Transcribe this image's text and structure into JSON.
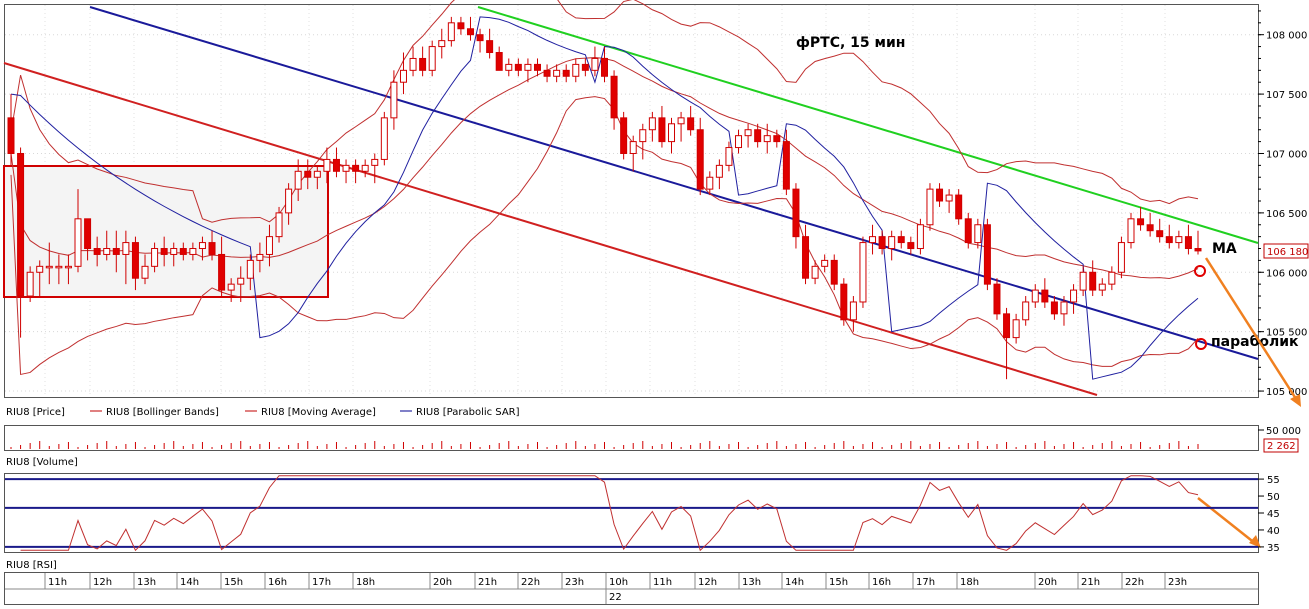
{
  "chart_data": {
    "type": "candlestick",
    "title": "фРТС, 15 мин",
    "instrument": "RIU8",
    "price_axis": {
      "ticks": [
        "108 000",
        "107 500",
        "107 000",
        "106 500",
        "106 000",
        "105 500",
        "105 000"
      ],
      "range": [
        104950,
        108250
      ]
    },
    "current_price_label": "106 180",
    "legend": [
      {
        "name": "RIU8 [Price]",
        "color": "#e00000"
      },
      {
        "name": "RIU8 [Bollinger Bands]",
        "color": "#c00000"
      },
      {
        "name": "RIU8 [Moving Average]",
        "color": "#c00000"
      },
      {
        "name": "RIU8 [Parabolic SAR]",
        "color": "#000090"
      }
    ],
    "volume": {
      "label": "RIU8 [Volume]",
      "tick": "50 000",
      "current": "2 262"
    },
    "rsi": {
      "label": "RIU8 [RSI]",
      "ticks": [
        "55",
        "50",
        "45",
        "40",
        "35"
      ],
      "range": [
        33.5,
        56.5
      ],
      "levels": [
        55,
        46.5,
        35
      ]
    },
    "time_axis": {
      "labels": [
        "11h",
        "12h",
        "13h",
        "14h",
        "15h",
        "16h",
        "17h",
        "18h",
        "20h",
        "21h",
        "22h",
        "23h",
        "10h",
        "11h",
        "12h",
        "13h",
        "14h",
        "15h",
        "16h",
        "17h",
        "18h",
        "20h",
        "21h",
        "22h",
        "23h"
      ],
      "date_label": "22"
    },
    "annotations": [
      {
        "text": "MA"
      },
      {
        "text": "параболик"
      }
    ],
    "candles": [
      [
        107300,
        107500,
        106900,
        107000
      ],
      [
        107000,
        107050,
        105450,
        105800
      ],
      [
        105800,
        106050,
        105750,
        106000
      ],
      [
        106000,
        106100,
        105800,
        106050
      ],
      [
        106050,
        106250,
        105900,
        106050
      ],
      [
        106050,
        106150,
        105900,
        106050
      ],
      [
        106050,
        106150,
        105900,
        106050
      ],
      [
        106050,
        106700,
        106000,
        106450
      ],
      [
        106450,
        106450,
        106100,
        106200
      ],
      [
        106200,
        106300,
        106050,
        106150
      ],
      [
        106150,
        106350,
        106100,
        106200
      ],
      [
        106200,
        106350,
        106000,
        106150
      ],
      [
        106150,
        106350,
        105900,
        106250
      ],
      [
        106250,
        106300,
        105850,
        105950
      ],
      [
        105950,
        106150,
        105900,
        106050
      ],
      [
        106050,
        106250,
        106000,
        106200
      ],
      [
        106200,
        106300,
        106050,
        106150
      ],
      [
        106150,
        106250,
        106050,
        106200
      ],
      [
        106200,
        106250,
        106100,
        106150
      ],
      [
        106150,
        106250,
        106100,
        106200
      ],
      [
        106200,
        106300,
        106100,
        106250
      ],
      [
        106250,
        106350,
        106100,
        106150
      ],
      [
        106150,
        106300,
        105800,
        105850
      ],
      [
        105850,
        105950,
        105750,
        105900
      ],
      [
        105900,
        106050,
        105750,
        105950
      ],
      [
        105950,
        106150,
        105850,
        106100
      ],
      [
        106100,
        106250,
        106000,
        106150
      ],
      [
        106150,
        106400,
        106050,
        106300
      ],
      [
        106300,
        106550,
        106250,
        106500
      ],
      [
        106500,
        106750,
        106400,
        106700
      ],
      [
        106700,
        106950,
        106600,
        106850
      ],
      [
        106850,
        106950,
        106700,
        106800
      ],
      [
        106800,
        106900,
        106700,
        106850
      ],
      [
        106850,
        107050,
        106750,
        106950
      ],
      [
        106950,
        107050,
        106800,
        106850
      ],
      [
        106850,
        106950,
        106750,
        106900
      ],
      [
        106900,
        106950,
        106750,
        106850
      ],
      [
        106850,
        106950,
        106800,
        106900
      ],
      [
        106900,
        107000,
        106750,
        106950
      ],
      [
        106950,
        107350,
        106900,
        107300
      ],
      [
        107300,
        107700,
        107200,
        107600
      ],
      [
        107600,
        107850,
        107500,
        107700
      ],
      [
        107700,
        107900,
        107650,
        107800
      ],
      [
        107800,
        107900,
        107650,
        107700
      ],
      [
        107700,
        107950,
        107650,
        107900
      ],
      [
        107900,
        108050,
        107800,
        107950
      ],
      [
        107950,
        108150,
        107900,
        108100
      ],
      [
        108100,
        108150,
        108000,
        108050
      ],
      [
        108050,
        108150,
        107950,
        108000
      ],
      [
        108000,
        108050,
        107850,
        107950
      ],
      [
        107950,
        108050,
        107800,
        107850
      ],
      [
        107850,
        107900,
        107700,
        107700
      ],
      [
        107700,
        107800,
        107650,
        107750
      ],
      [
        107750,
        107800,
        107650,
        107700
      ],
      [
        107700,
        107800,
        107600,
        107750
      ],
      [
        107750,
        107800,
        107650,
        107700
      ],
      [
        107700,
        107750,
        107600,
        107650
      ],
      [
        107650,
        107750,
        107600,
        107700
      ],
      [
        107700,
        107750,
        107600,
        107650
      ],
      [
        107650,
        107800,
        107600,
        107750
      ],
      [
        107750,
        107800,
        107650,
        107700
      ],
      [
        107700,
        107900,
        107650,
        107800
      ],
      [
        107800,
        107900,
        107600,
        107650
      ],
      [
        107650,
        107700,
        107200,
        107300
      ],
      [
        107300,
        107350,
        106950,
        107000
      ],
      [
        107000,
        107150,
        106850,
        107100
      ],
      [
        107100,
        107250,
        106950,
        107200
      ],
      [
        107200,
        107350,
        107100,
        107300
      ],
      [
        107300,
        107400,
        107050,
        107100
      ],
      [
        107100,
        107300,
        107000,
        107250
      ],
      [
        107250,
        107350,
        107100,
        107300
      ],
      [
        107300,
        107400,
        107150,
        107200
      ],
      [
        107200,
        107300,
        106650,
        106700
      ],
      [
        106700,
        106850,
        106650,
        106800
      ],
      [
        106800,
        106950,
        106700,
        106900
      ],
      [
        106900,
        107100,
        106850,
        107050
      ],
      [
        107050,
        107200,
        107000,
        107150
      ],
      [
        107150,
        107250,
        107050,
        107200
      ],
      [
        107200,
        107250,
        107050,
        107100
      ],
      [
        107100,
        107250,
        107000,
        107150
      ],
      [
        107150,
        107200,
        107050,
        107100
      ],
      [
        107100,
        107200,
        106650,
        106700
      ],
      [
        106700,
        106750,
        106200,
        106300
      ],
      [
        106300,
        106400,
        105900,
        105950
      ],
      [
        105950,
        106100,
        105900,
        106050
      ],
      [
        106050,
        106150,
        106000,
        106100
      ],
      [
        106100,
        106150,
        105850,
        105900
      ],
      [
        105900,
        105950,
        105550,
        105600
      ],
      [
        105600,
        105800,
        105500,
        105750
      ],
      [
        105750,
        106300,
        105700,
        106250
      ],
      [
        106250,
        106400,
        106150,
        106300
      ],
      [
        106300,
        106350,
        106150,
        106200
      ],
      [
        106200,
        106350,
        106100,
        106300
      ],
      [
        106300,
        106350,
        106200,
        106250
      ],
      [
        106250,
        106300,
        106150,
        106200
      ],
      [
        106200,
        106450,
        106150,
        106400
      ],
      [
        106400,
        106750,
        106350,
        106700
      ],
      [
        106700,
        106750,
        106550,
        106600
      ],
      [
        106600,
        106700,
        106500,
        106650
      ],
      [
        106650,
        106700,
        106400,
        106450
      ],
      [
        106450,
        106500,
        106200,
        106250
      ],
      [
        106250,
        106450,
        106200,
        106400
      ],
      [
        106400,
        106450,
        105850,
        105900
      ],
      [
        105900,
        105950,
        105600,
        105650
      ],
      [
        105650,
        105700,
        105100,
        105450
      ],
      [
        105450,
        105650,
        105400,
        105600
      ],
      [
        105600,
        105800,
        105550,
        105750
      ],
      [
        105750,
        105900,
        105700,
        105850
      ],
      [
        105850,
        105950,
        105700,
        105750
      ],
      [
        105750,
        105800,
        105600,
        105650
      ],
      [
        105650,
        105800,
        105550,
        105750
      ],
      [
        105750,
        105900,
        105650,
        105850
      ],
      [
        105850,
        106050,
        105800,
        106000
      ],
      [
        106000,
        106100,
        105800,
        105850
      ],
      [
        105850,
        105950,
        105800,
        105900
      ],
      [
        105900,
        106050,
        105850,
        106000
      ],
      [
        106000,
        106300,
        105950,
        106250
      ],
      [
        106250,
        106500,
        106200,
        106450
      ],
      [
        106450,
        106550,
        106350,
        106400
      ],
      [
        106400,
        106500,
        106300,
        106350
      ],
      [
        106350,
        106450,
        106250,
        106300
      ],
      [
        106300,
        106400,
        106200,
        106250
      ],
      [
        106250,
        106350,
        106200,
        106300
      ],
      [
        106300,
        106400,
        106150,
        106200
      ],
      [
        106200,
        106350,
        106150,
        106180
      ]
    ]
  }
}
